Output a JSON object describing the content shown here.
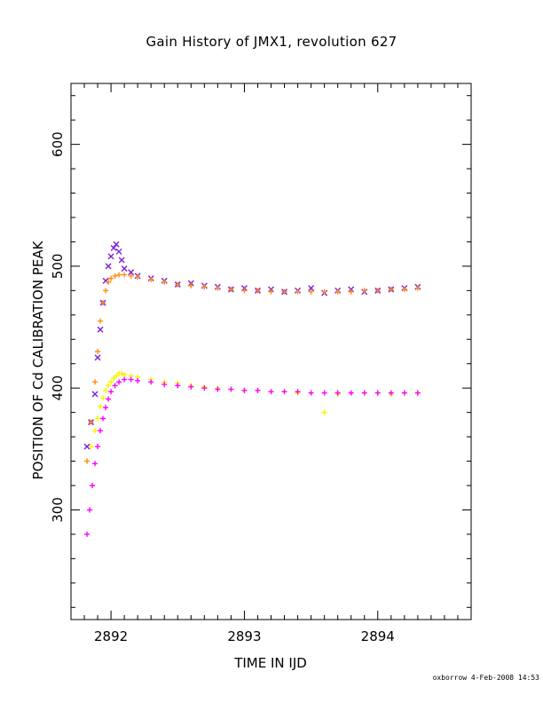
{
  "chart_data": {
    "type": "scatter",
    "title": "Gain History of JMX1, revolution 627",
    "xlabel": "TIME IN IJD",
    "ylabel": "POSITION OF Cd CALIBRATION PEAK",
    "xlim": [
      2891.7,
      2894.7
    ],
    "ylim": [
      210,
      650
    ],
    "x_ticks": [
      {
        "value": 2892,
        "label": "2892"
      },
      {
        "value": 2893,
        "label": "2893"
      },
      {
        "value": 2894,
        "label": "2894"
      }
    ],
    "y_ticks": [
      {
        "value": 300,
        "label": "300"
      },
      {
        "value": 400,
        "label": "400"
      },
      {
        "value": 500,
        "label": "500"
      },
      {
        "value": 600,
        "label": "600"
      }
    ],
    "x_minor_step": 0.1,
    "y_minor_step": 20,
    "grid": false,
    "series": [
      {
        "name": "",
        "marker": "x",
        "color": "#7b1fd6",
        "description_hidden": true,
        "x": [
          2891.82,
          2891.85,
          2891.88,
          2891.9,
          2891.92,
          2891.94,
          2891.96,
          2891.98,
          2892.0,
          2892.02,
          2892.04,
          2892.06,
          2892.08,
          2892.1,
          2892.15,
          2892.2,
          2892.3,
          2892.4,
          2892.5,
          2892.6,
          2892.7,
          2892.8,
          2892.9,
          2893.0,
          2893.1,
          2893.2,
          2893.3,
          2893.4,
          2893.5,
          2893.6,
          2893.7,
          2893.8,
          2893.9,
          2894.0,
          2894.1,
          2894.2,
          2894.3
        ],
        "y": [
          352,
          372,
          395,
          425,
          448,
          470,
          488,
          500,
          508,
          515,
          518,
          512,
          505,
          498,
          495,
          492,
          490,
          488,
          485,
          486,
          484,
          483,
          481,
          482,
          480,
          481,
          479,
          480,
          482,
          478,
          480,
          481,
          479,
          480,
          481,
          482,
          483
        ]
      },
      {
        "name": "",
        "marker": "+",
        "color": "#f5f500",
        "x": [
          2891.82,
          2891.85,
          2891.88,
          2891.9,
          2891.92,
          2891.94,
          2891.96,
          2891.98,
          2892.0,
          2892.02,
          2892.04,
          2892.06,
          2892.08,
          2892.1,
          2892.15,
          2892.2,
          2892.3,
          2892.4,
          2892.5,
          2892.6,
          2892.7,
          2892.8,
          2892.9,
          2893.0,
          2893.1,
          2893.2,
          2893.3,
          2893.4,
          2893.5,
          2893.6,
          2893.7,
          2893.8,
          2893.9,
          2894.0,
          2894.1,
          2894.2,
          2894.3
        ],
        "y": [
          340,
          352,
          365,
          375,
          385,
          392,
          398,
          402,
          405,
          408,
          410,
          412,
          412,
          411,
          410,
          409,
          407,
          405,
          404,
          402,
          401,
          400,
          399,
          398,
          398,
          397,
          397,
          396,
          396,
          380,
          395,
          396,
          396,
          396,
          395,
          396,
          396
        ]
      },
      {
        "name": "",
        "marker": "+",
        "color": "#ff8c1a",
        "x": [
          2891.82,
          2891.85,
          2891.88,
          2891.9,
          2891.92,
          2891.94,
          2891.96,
          2891.98,
          2892.0,
          2892.03,
          2892.06,
          2892.1,
          2892.15,
          2892.2,
          2892.3,
          2892.4,
          2892.5,
          2892.6,
          2892.7,
          2892.8,
          2892.9,
          2893.0,
          2893.1,
          2893.2,
          2893.3,
          2893.4,
          2893.5,
          2893.6,
          2893.7,
          2893.8,
          2893.9,
          2894.0,
          2894.1,
          2894.2,
          2894.3
        ],
        "y": [
          340,
          372,
          405,
          430,
          455,
          470,
          480,
          487,
          490,
          492,
          493,
          493,
          492,
          491,
          489,
          487,
          485,
          484,
          483,
          482,
          481,
          480,
          480,
          479,
          479,
          479,
          479,
          479,
          479,
          479,
          480,
          480,
          481,
          481,
          482
        ]
      },
      {
        "name": "",
        "marker": "+",
        "color": "#ff00ff",
        "x": [
          2891.82,
          2891.84,
          2891.86,
          2891.88,
          2891.9,
          2891.92,
          2891.94,
          2891.96,
          2891.98,
          2892.0,
          2892.03,
          2892.06,
          2892.1,
          2892.15,
          2892.2,
          2892.3,
          2892.4,
          2892.5,
          2892.6,
          2892.7,
          2892.8,
          2892.9,
          2893.0,
          2893.1,
          2893.2,
          2893.3,
          2893.4,
          2893.5,
          2893.6,
          2893.7,
          2893.8,
          2893.9,
          2894.0,
          2894.1,
          2894.2,
          2894.3
        ],
        "y": [
          280,
          300,
          320,
          338,
          352,
          365,
          375,
          384,
          391,
          397,
          402,
          405,
          407,
          407,
          406,
          405,
          403,
          402,
          401,
          400,
          399,
          399,
          398,
          398,
          397,
          397,
          397,
          396,
          396,
          396,
          396,
          396,
          396,
          396,
          396,
          396
        ]
      }
    ],
    "footer": "oxborrow   4-Feb-2008 14:53"
  }
}
